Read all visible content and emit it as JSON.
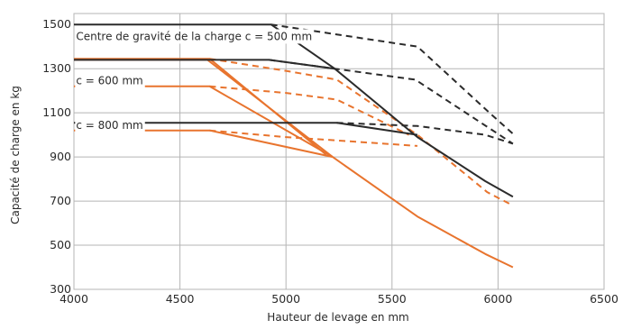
{
  "chart_data": {
    "type": "line",
    "xlabel": "Hauteur de levage en mm",
    "ylabel": "Capacité de charge en kg",
    "xlim": [
      4000,
      6500
    ],
    "ylim": [
      300,
      1550
    ],
    "x_ticks": [
      4000,
      4500,
      5000,
      5500,
      6000,
      6500
    ],
    "y_ticks": [
      300,
      500,
      700,
      900,
      1100,
      1300,
      1500
    ],
    "grid": true,
    "legend": "none",
    "colors": {
      "black": "#2b2b2b",
      "orange": "#e8742e",
      "grid": "#b5b5b5"
    },
    "annotations": [
      {
        "text": "Centre de gravité de la charge c = 500 mm",
        "x": 4010,
        "y": 1446
      },
      {
        "text": "c = 600 mm",
        "x": 4010,
        "y": 1245
      },
      {
        "text": "c = 800 mm",
        "x": 4010,
        "y": 1043
      }
    ],
    "series": [
      {
        "color": "black",
        "style": "solid",
        "points": [
          [
            4000,
            1500
          ],
          [
            4930,
            1500
          ],
          [
            5230,
            1300
          ],
          [
            5620,
            990
          ],
          [
            5940,
            790
          ],
          [
            6070,
            720
          ]
        ]
      },
      {
        "color": "black",
        "style": "solid",
        "points": [
          [
            4000,
            1340
          ],
          [
            4920,
            1340
          ],
          [
            5230,
            1300
          ]
        ]
      },
      {
        "color": "black",
        "style": "solid",
        "points": [
          [
            4000,
            1055
          ],
          [
            5240,
            1055
          ],
          [
            5620,
            1000
          ]
        ]
      },
      {
        "color": "black",
        "style": "dashed",
        "points": [
          [
            4930,
            1500
          ],
          [
            5000,
            1490
          ],
          [
            5620,
            1400
          ],
          [
            5960,
            1100
          ],
          [
            6070,
            1005
          ]
        ]
      },
      {
        "color": "black",
        "style": "dashed",
        "points": [
          [
            4920,
            1340
          ],
          [
            5230,
            1300
          ],
          [
            5610,
            1250
          ],
          [
            6070,
            960
          ]
        ]
      },
      {
        "color": "black",
        "style": "dashed",
        "points": [
          [
            5240,
            1055
          ],
          [
            5620,
            1040
          ],
          [
            5940,
            1000
          ],
          [
            6070,
            960
          ]
        ]
      },
      {
        "color": "orange",
        "style": "solid",
        "points": [
          [
            4000,
            1345
          ],
          [
            4640,
            1345
          ],
          [
            5190,
            910
          ]
        ]
      },
      {
        "color": "orange",
        "style": "solid",
        "points": [
          [
            4000,
            1340
          ],
          [
            4630,
            1340
          ],
          [
            5220,
            900
          ]
        ]
      },
      {
        "color": "orange",
        "style": "solid",
        "points": [
          [
            4000,
            1220
          ],
          [
            4640,
            1220
          ],
          [
            5220,
            900
          ],
          [
            5620,
            630
          ],
          [
            5940,
            460
          ],
          [
            6070,
            400
          ]
        ]
      },
      {
        "color": "orange",
        "style": "solid",
        "points": [
          [
            4000,
            1020
          ],
          [
            4640,
            1020
          ],
          [
            5220,
            900
          ]
        ]
      },
      {
        "color": "orange",
        "style": "dashed",
        "points": [
          [
            4640,
            1345
          ],
          [
            5000,
            1290
          ],
          [
            5240,
            1250
          ],
          [
            5620,
            1000
          ],
          [
            5950,
            740
          ],
          [
            6070,
            680
          ]
        ]
      },
      {
        "color": "orange",
        "style": "dashed",
        "points": [
          [
            4640,
            1220
          ],
          [
            5000,
            1190
          ],
          [
            5240,
            1160
          ],
          [
            5580,
            1000
          ]
        ]
      },
      {
        "color": "orange",
        "style": "dashed",
        "points": [
          [
            4640,
            1020
          ],
          [
            5000,
            990
          ],
          [
            5240,
            975
          ],
          [
            5620,
            950
          ]
        ]
      }
    ]
  }
}
